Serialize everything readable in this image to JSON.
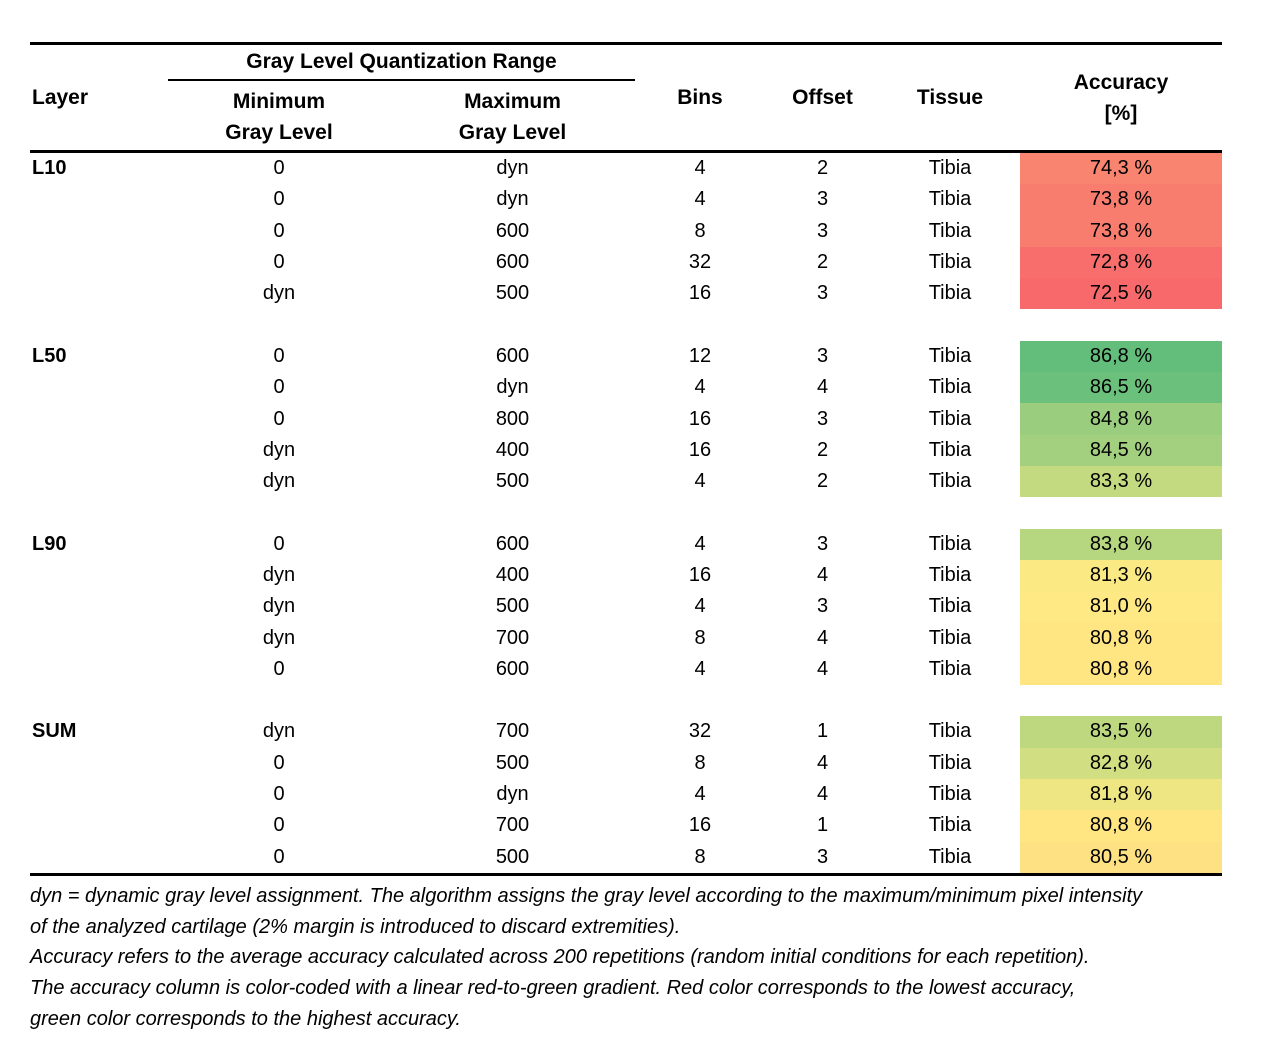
{
  "table": {
    "column_headers": {
      "layer": "Layer",
      "group_span": "Gray Level Quantization Range",
      "min_line1": "Minimum",
      "min_line2": "Gray Level",
      "max_line1": "Maximum",
      "max_line2": "Gray Level",
      "bins": "Bins",
      "offset": "Offset",
      "tissue": "Tissue",
      "accuracy_line1": "Accuracy",
      "accuracy_line2": "[%]"
    },
    "groups": [
      {
        "layer": "L10",
        "rows": [
          {
            "min": "0",
            "max": "dyn",
            "bins": "4",
            "offset": "2",
            "tissue": "Tibia",
            "accuracy": "74,3 %",
            "accuracy_color": "#F98470"
          },
          {
            "min": "0",
            "max": "dyn",
            "bins": "4",
            "offset": "3",
            "tissue": "Tibia",
            "accuracy": "73,8 %",
            "accuracy_color": "#F97D6F"
          },
          {
            "min": "0",
            "max": "600",
            "bins": "8",
            "offset": "3",
            "tissue": "Tibia",
            "accuracy": "73,8 %",
            "accuracy_color": "#F97D6F"
          },
          {
            "min": "0",
            "max": "600",
            "bins": "32",
            "offset": "2",
            "tissue": "Tibia",
            "accuracy": "72,8 %",
            "accuracy_color": "#F86E6C"
          },
          {
            "min": "dyn",
            "max": "500",
            "bins": "16",
            "offset": "3",
            "tissue": "Tibia",
            "accuracy": "72,5 %",
            "accuracy_color": "#F8696B"
          }
        ]
      },
      {
        "layer": "L50",
        "rows": [
          {
            "min": "0",
            "max": "600",
            "bins": "12",
            "offset": "3",
            "tissue": "Tibia",
            "accuracy": "86,8 %",
            "accuracy_color": "#63BE7B"
          },
          {
            "min": "0",
            "max": "dyn",
            "bins": "4",
            "offset": "4",
            "tissue": "Tibia",
            "accuracy": "86,5 %",
            "accuracy_color": "#6BC07B"
          },
          {
            "min": "0",
            "max": "800",
            "bins": "16",
            "offset": "3",
            "tissue": "Tibia",
            "accuracy": "84,8 %",
            "accuracy_color": "#9ACE7E"
          },
          {
            "min": "dyn",
            "max": "400",
            "bins": "16",
            "offset": "2",
            "tissue": "Tibia",
            "accuracy": "84,5 %",
            "accuracy_color": "#A3D07F"
          },
          {
            "min": "dyn",
            "max": "500",
            "bins": "4",
            "offset": "2",
            "tissue": "Tibia",
            "accuracy": "83,3 %",
            "accuracy_color": "#C4DA81"
          }
        ]
      },
      {
        "layer": "L90",
        "rows": [
          {
            "min": "0",
            "max": "600",
            "bins": "4",
            "offset": "3",
            "tissue": "Tibia",
            "accuracy": "83,8 %",
            "accuracy_color": "#B6D680"
          },
          {
            "min": "dyn",
            "max": "400",
            "bins": "16",
            "offset": "4",
            "tissue": "Tibia",
            "accuracy": "81,3 %",
            "accuracy_color": "#FBEA84"
          },
          {
            "min": "dyn",
            "max": "500",
            "bins": "4",
            "offset": "3",
            "tissue": "Tibia",
            "accuracy": "81,0 %",
            "accuracy_color": "#FFE984"
          },
          {
            "min": "dyn",
            "max": "700",
            "bins": "8",
            "offset": "4",
            "tissue": "Tibia",
            "accuracy": "80,8 %",
            "accuracy_color": "#FFE683"
          },
          {
            "min": "0",
            "max": "600",
            "bins": "4",
            "offset": "4",
            "tissue": "Tibia",
            "accuracy": "80,8 %",
            "accuracy_color": "#FFE683"
          }
        ]
      },
      {
        "layer": "SUM",
        "rows": [
          {
            "min": "dyn",
            "max": "700",
            "bins": "32",
            "offset": "1",
            "tissue": "Tibia",
            "accuracy": "83,5 %",
            "accuracy_color": "#BED880"
          },
          {
            "min": "0",
            "max": "500",
            "bins": "8",
            "offset": "4",
            "tissue": "Tibia",
            "accuracy": "82,8 %",
            "accuracy_color": "#D1DE81"
          },
          {
            "min": "0",
            "max": "dyn",
            "bins": "4",
            "offset": "4",
            "tissue": "Tibia",
            "accuracy": "81,8 %",
            "accuracy_color": "#EDE683"
          },
          {
            "min": "0",
            "max": "700",
            "bins": "16",
            "offset": "1",
            "tissue": "Tibia",
            "accuracy": "80,8 %",
            "accuracy_color": "#FFE683"
          },
          {
            "min": "0",
            "max": "500",
            "bins": "8",
            "offset": "3",
            "tissue": "Tibia",
            "accuracy": "80,5 %",
            "accuracy_color": "#FEE182"
          }
        ]
      }
    ]
  },
  "footnotes": [
    "dyn = dynamic gray level assignment. The algorithm assigns the gray level according to the maximum/minimum pixel intensity",
    "of the analyzed cartilage (2% margin is introduced to discard extremities).",
    "Accuracy refers to the average accuracy calculated across 200 repetitions (random initial conditions for each repetition).",
    "The accuracy column is color-coded with a linear red-to-green gradient. Red color corresponds to the lowest accuracy,",
    "green color corresponds to the highest accuracy."
  ]
}
